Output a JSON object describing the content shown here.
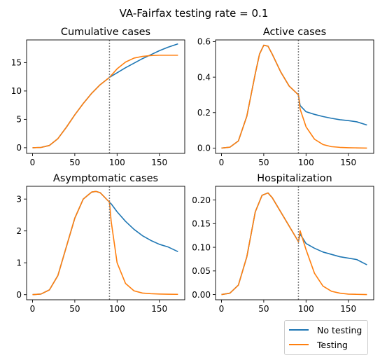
{
  "suptitle": "VA-Fairfax testing rate = 0.1",
  "colors": {
    "no_testing": "#1f77b4",
    "testing": "#ff7f0e",
    "vline": "#808080"
  },
  "legend": [
    {
      "label": "No testing",
      "color": "#1f77b4"
    },
    {
      "label": "Testing",
      "color": "#ff7f0e"
    }
  ],
  "chart_data": [
    {
      "type": "line",
      "title": "Cumulative cases",
      "xlabel": "",
      "ylabel": "",
      "xlim": [
        -7,
        180
      ],
      "ylim": [
        -1,
        19
      ],
      "xticks": [
        0,
        50,
        100,
        150
      ],
      "yticks": [
        0,
        5,
        10,
        15
      ],
      "vline_x": 91,
      "x": [
        0,
        10,
        20,
        30,
        40,
        50,
        60,
        70,
        80,
        91,
        100,
        110,
        120,
        130,
        140,
        150,
        160,
        172
      ],
      "series": [
        {
          "name": "No testing",
          "values": [
            0,
            0.05,
            0.4,
            1.6,
            3.6,
            5.8,
            7.8,
            9.6,
            11.1,
            12.4,
            13.2,
            14.1,
            14.9,
            15.7,
            16.4,
            17.1,
            17.7,
            18.3
          ]
        },
        {
          "name": "Testing",
          "values": [
            0,
            0.05,
            0.4,
            1.6,
            3.6,
            5.8,
            7.8,
            9.6,
            11.1,
            12.4,
            13.9,
            15.1,
            15.8,
            16.1,
            16.25,
            16.3,
            16.3,
            16.3
          ]
        }
      ]
    },
    {
      "type": "line",
      "title": "Active cases",
      "xlabel": "",
      "ylabel": "",
      "xlim": [
        -7,
        180
      ],
      "ylim": [
        -0.03,
        0.61
      ],
      "xticks": [
        0,
        50,
        100,
        150
      ],
      "yticks": [
        0.0,
        0.2,
        0.4,
        0.6
      ],
      "vline_x": 91,
      "x": [
        0,
        10,
        20,
        30,
        40,
        45,
        50,
        55,
        60,
        70,
        80,
        91,
        93,
        100,
        110,
        120,
        130,
        140,
        150,
        160,
        172
      ],
      "series": [
        {
          "name": "No testing",
          "values": [
            0.0,
            0.005,
            0.04,
            0.18,
            0.42,
            0.53,
            0.58,
            0.575,
            0.53,
            0.43,
            0.35,
            0.3,
            0.24,
            0.205,
            0.19,
            0.178,
            0.168,
            0.16,
            0.155,
            0.148,
            0.13
          ]
        },
        {
          "name": "Testing",
          "values": [
            0.0,
            0.005,
            0.04,
            0.18,
            0.42,
            0.53,
            0.58,
            0.575,
            0.53,
            0.43,
            0.35,
            0.3,
            0.22,
            0.12,
            0.05,
            0.02,
            0.008,
            0.004,
            0.002,
            0.001,
            0.0
          ]
        }
      ]
    },
    {
      "type": "line",
      "title": "Asymptomatic cases",
      "xlabel": "",
      "ylabel": "",
      "xlim": [
        -7,
        180
      ],
      "ylim": [
        -0.16,
        3.4
      ],
      "xticks": [
        0,
        50,
        100,
        150
      ],
      "yticks": [
        0,
        1,
        2,
        3
      ],
      "vline_x": 91,
      "x": [
        0,
        10,
        20,
        30,
        40,
        50,
        60,
        70,
        75,
        80,
        91,
        93,
        100,
        110,
        120,
        130,
        140,
        150,
        160,
        172
      ],
      "series": [
        {
          "name": "No testing",
          "values": [
            0.0,
            0.02,
            0.15,
            0.6,
            1.5,
            2.4,
            3.0,
            3.22,
            3.24,
            3.2,
            2.9,
            2.85,
            2.6,
            2.3,
            2.05,
            1.85,
            1.7,
            1.58,
            1.5,
            1.35
          ]
        },
        {
          "name": "Testing",
          "values": [
            0.0,
            0.02,
            0.15,
            0.6,
            1.5,
            2.4,
            3.0,
            3.22,
            3.24,
            3.2,
            2.9,
            2.3,
            1.0,
            0.35,
            0.12,
            0.05,
            0.03,
            0.02,
            0.015,
            0.01
          ]
        }
      ]
    },
    {
      "type": "line",
      "title": "Hospitalization",
      "xlabel": "",
      "ylabel": "",
      "xlim": [
        -7,
        180
      ],
      "ylim": [
        -0.011,
        0.229
      ],
      "xticks": [
        0,
        50,
        100,
        150
      ],
      "yticks": [
        0.0,
        0.05,
        0.1,
        0.15,
        0.2
      ],
      "vline_x": 91,
      "x": [
        0,
        10,
        20,
        30,
        40,
        48,
        55,
        60,
        70,
        80,
        91,
        93,
        100,
        110,
        120,
        130,
        140,
        150,
        160,
        172
      ],
      "series": [
        {
          "name": "No testing",
          "values": [
            0.0,
            0.003,
            0.02,
            0.08,
            0.175,
            0.21,
            0.215,
            0.205,
            0.175,
            0.145,
            0.112,
            0.128,
            0.108,
            0.098,
            0.09,
            0.085,
            0.08,
            0.077,
            0.074,
            0.063
          ]
        },
        {
          "name": "Testing",
          "values": [
            0.0,
            0.003,
            0.02,
            0.08,
            0.175,
            0.21,
            0.215,
            0.205,
            0.175,
            0.145,
            0.112,
            0.135,
            0.095,
            0.045,
            0.018,
            0.007,
            0.003,
            0.001,
            0.0005,
            0.0
          ]
        }
      ]
    }
  ]
}
